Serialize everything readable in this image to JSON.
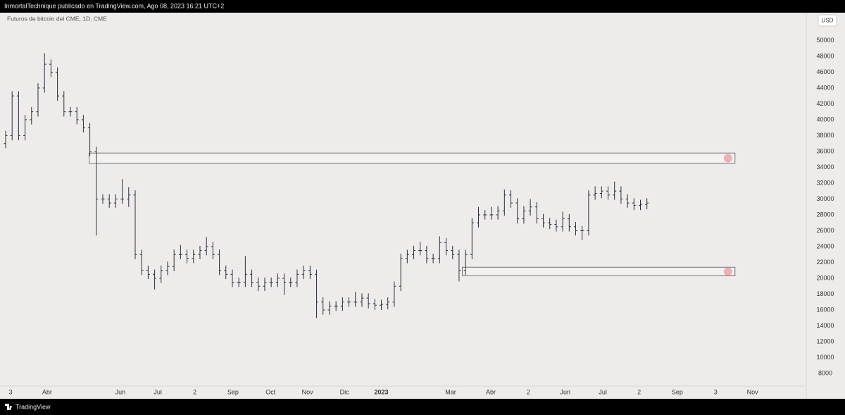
{
  "header": {
    "text": "InmortalTechnique publicado en TradingView.com, Ago 08, 2023 16:21 UTC+2"
  },
  "footer": {
    "brand": "TradingView"
  },
  "chart_data": {
    "type": "ohlc",
    "legend": "Futuros de bitcoin del CME, 1D, CME",
    "currency": "USD",
    "color": "#2a2e39",
    "zone_color": "#e8a0a8",
    "grid": false,
    "ylim": [
      6400,
      53500
    ],
    "yticks": [
      8000,
      10000,
      12000,
      14000,
      16000,
      18000,
      20000,
      22000,
      24000,
      26000,
      28000,
      30000,
      32000,
      34000,
      36000,
      38000,
      40000,
      42000,
      44000,
      46000,
      48000,
      50000
    ],
    "xlim": [
      -0.87,
      123.6
    ],
    "xticks": [
      {
        "value": 0.76,
        "label": "3"
      },
      {
        "value": 6.4,
        "label": "Abr"
      },
      {
        "value": 17.7,
        "label": "Jun"
      },
      {
        "value": 23.5,
        "label": "Jul"
      },
      {
        "value": 29.2,
        "label": "2"
      },
      {
        "value": 35.1,
        "label": "Sep"
      },
      {
        "value": 40.9,
        "label": "Oct"
      },
      {
        "value": 46.6,
        "label": "Nov"
      },
      {
        "value": 52.3,
        "label": "Dic"
      },
      {
        "value": 58,
        "label": "2023"
      },
      {
        "value": 68.7,
        "label": "Mar"
      },
      {
        "value": 74.9,
        "label": "Abr"
      },
      {
        "value": 80.7,
        "label": "2"
      },
      {
        "value": 86.4,
        "label": "Jun"
      },
      {
        "value": 92.2,
        "label": "Jul"
      },
      {
        "value": 97.8,
        "label": "2"
      },
      {
        "value": 103.7,
        "label": "Sep"
      },
      {
        "value": 109.6,
        "label": "3"
      },
      {
        "value": 115.3,
        "label": "Nov"
      }
    ],
    "open": [
      37000,
      38000,
      43000,
      38000,
      40000,
      41000,
      44000,
      47000,
      46000,
      43000,
      41000,
      41000,
      40000,
      39000,
      36000,
      30000,
      30000,
      29500,
      30000,
      30000,
      30500,
      23000,
      21000,
      20500,
      20000,
      21000,
      21500,
      23000,
      23000,
      22500,
      23000,
      23500,
      24000,
      23000,
      21000,
      20500,
      19500,
      19500,
      20500,
      19500,
      19000,
      19500,
      19500,
      20000,
      19500,
      19500,
      20500,
      21000,
      20500,
      17000,
      16000,
      16500,
      16500,
      17000,
      17000,
      17000,
      17500,
      16800,
      16600,
      16700,
      17000,
      19000,
      22500,
      23000,
      23500,
      23500,
      22500,
      22500,
      24500,
      23500,
      23000,
      21000,
      23000,
      27000,
      28000,
      28000,
      28000,
      28500,
      30500,
      29500,
      27500,
      28500,
      29000,
      27500,
      27000,
      26800,
      26500,
      27500,
      26500,
      26000,
      26000,
      30500,
      30700,
      31000,
      30500,
      31000,
      30000,
      29500,
      29200,
      29300
    ],
    "high": [
      38600,
      43600,
      43600,
      40600,
      41600,
      44600,
      48400,
      47600,
      46600,
      43600,
      41600,
      41600,
      40600,
      39600,
      36600,
      30600,
      30600,
      30600,
      32500,
      31500,
      31100,
      23600,
      21600,
      21100,
      21600,
      22100,
      23600,
      24200,
      23600,
      23600,
      24100,
      25200,
      24600,
      23600,
      21600,
      21100,
      20100,
      22800,
      21100,
      20100,
      20100,
      20100,
      20600,
      20600,
      20100,
      21100,
      21600,
      21600,
      21100,
      17600,
      17100,
      17100,
      17600,
      17600,
      18300,
      18100,
      18100,
      17400,
      17300,
      17600,
      19600,
      23100,
      23600,
      24100,
      24600,
      24100,
      23100,
      25300,
      25100,
      24100,
      23600,
      23600,
      27600,
      29000,
      28600,
      29000,
      29100,
      31200,
      31100,
      30100,
      29100,
      30000,
      29600,
      28100,
      27600,
      27400,
      28400,
      28100,
      27100,
      26600,
      31100,
      31600,
      31600,
      31600,
      32200,
      31600,
      30600,
      30100,
      29900,
      30100
    ],
    "low": [
      36400,
      37400,
      37400,
      37400,
      39400,
      40400,
      43400,
      45400,
      42400,
      40400,
      40400,
      39400,
      38400,
      35400,
      25400,
      29400,
      28900,
      28900,
      29400,
      29000,
      22400,
      20400,
      19900,
      18600,
      19400,
      20400,
      20900,
      22400,
      21900,
      21900,
      22400,
      22900,
      22400,
      20400,
      19900,
      18900,
      18900,
      18900,
      18900,
      18400,
      18400,
      18900,
      18900,
      17900,
      18900,
      18900,
      19900,
      19900,
      15000,
      15400,
      15400,
      15900,
      15900,
      16400,
      16400,
      16400,
      16200,
      16000,
      16000,
      16100,
      16400,
      18400,
      21900,
      22400,
      22900,
      21900,
      21900,
      21900,
      22900,
      22400,
      19600,
      20400,
      22400,
      26400,
      27400,
      27400,
      27400,
      27900,
      28900,
      26900,
      26900,
      27900,
      26900,
      26400,
      26200,
      25900,
      25900,
      25900,
      25400,
      24800,
      25400,
      29900,
      30100,
      29900,
      29900,
      29400,
      28900,
      28600,
      28600,
      28700
    ],
    "close": [
      38000,
      43000,
      38000,
      40000,
      41000,
      44000,
      47000,
      46000,
      43000,
      41000,
      41000,
      40000,
      39000,
      36000,
      30000,
      30000,
      29500,
      30000,
      30000,
      30500,
      23000,
      21000,
      20500,
      20000,
      21000,
      21500,
      23000,
      23000,
      22500,
      23000,
      23500,
      24000,
      23000,
      21000,
      20500,
      19500,
      19500,
      20500,
      19500,
      19000,
      19500,
      19500,
      20000,
      19500,
      19500,
      20500,
      21000,
      20500,
      17000,
      16000,
      16500,
      16500,
      17000,
      17000,
      17000,
      17500,
      16800,
      16600,
      16700,
      17000,
      19000,
      22500,
      23000,
      23500,
      23500,
      22500,
      22500,
      24500,
      23500,
      23000,
      21000,
      23000,
      27000,
      28000,
      28000,
      28000,
      28500,
      30500,
      29500,
      27500,
      28500,
      29000,
      27500,
      27000,
      26800,
      26500,
      27500,
      26500,
      26000,
      26000,
      30500,
      30700,
      31000,
      30500,
      31000,
      30000,
      29500,
      29200,
      29300,
      29500
    ],
    "zones": [
      {
        "low": 34500,
        "high": 35800,
        "x_start": 12.9,
        "x_end": 112.6
      },
      {
        "low": 20300,
        "high": 21400,
        "x_start": 70.5,
        "x_end": 112.6
      }
    ]
  }
}
